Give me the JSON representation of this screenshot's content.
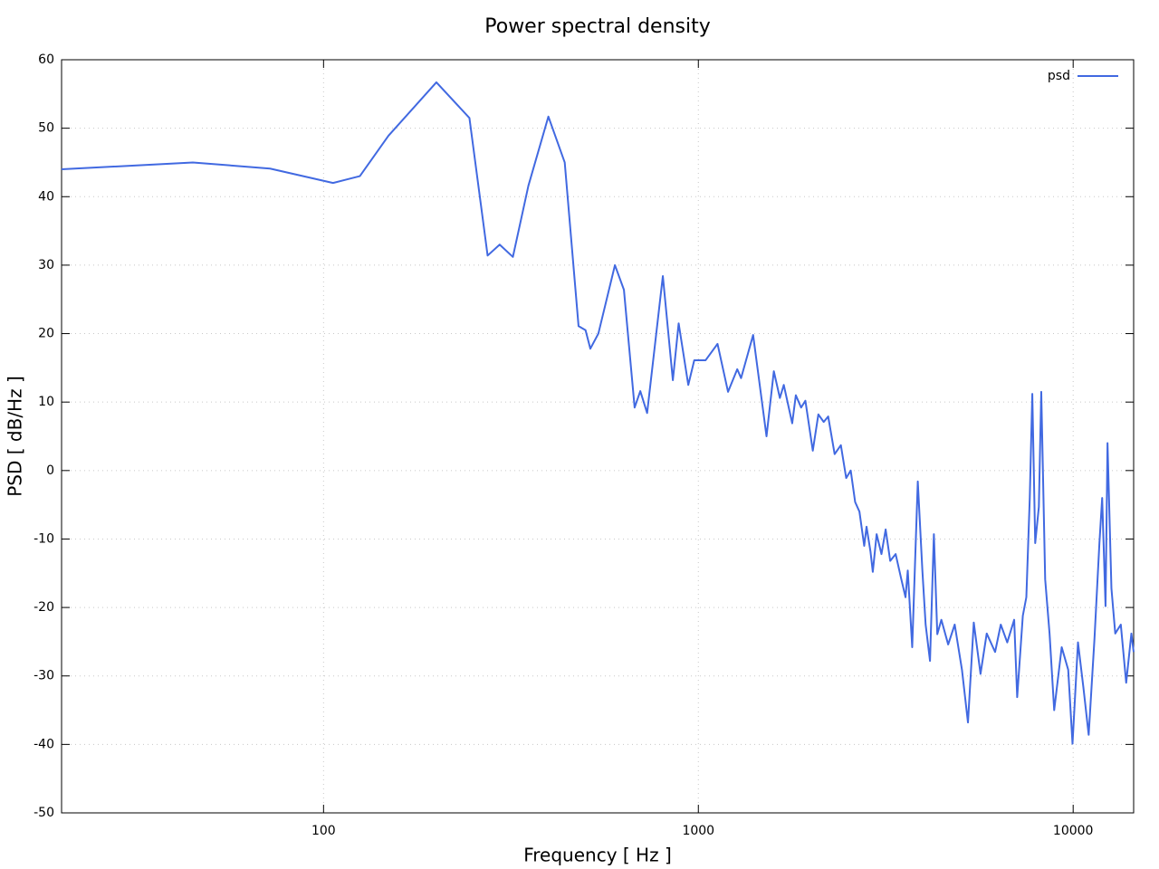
{
  "chart_data": {
    "type": "line",
    "title": "Power spectral density",
    "xlabel": "Frequency [ Hz ]",
    "ylabel": "PSD [ dB/Hz ]",
    "xscale": "log",
    "grid": true,
    "legend": "top-right",
    "xlim": [
      20,
      14500
    ],
    "ylim": [
      -50,
      60
    ],
    "xticks": [
      100,
      1000,
      10000
    ],
    "yticks": [
      -50,
      -40,
      -30,
      -20,
      -10,
      0,
      10,
      20,
      30,
      40,
      50,
      60
    ],
    "x": [
      20,
      44.8,
      72,
      106,
      125,
      149,
      200,
      245,
      274,
      295,
      320,
      352,
      398,
      440,
      479,
      500,
      515,
      541,
      599,
      633,
      676,
      700,
      730,
      804,
      855,
      886,
      940,
      975,
      1045,
      1125,
      1200,
      1270,
      1300,
      1400,
      1520,
      1590,
      1650,
      1690,
      1780,
      1820,
      1880,
      1930,
      2020,
      2090,
      2160,
      2220,
      2310,
      2400,
      2480,
      2550,
      2620,
      2690,
      2770,
      2810,
      2880,
      2920,
      2990,
      3080,
      3160,
      3250,
      3360,
      3480,
      3570,
      3620,
      3720,
      3850,
      3960,
      4040,
      4150,
      4250,
      4340,
      4450,
      4640,
      4830,
      5050,
      5240,
      5430,
      5660,
      5880,
      6190,
      6410,
      6670,
      6960,
      7090,
      7340,
      7500,
      7660,
      7780,
      7920,
      8100,
      8220,
      8420,
      8650,
      8900,
      9320,
      9700,
      9960,
      10300,
      10650,
      11000,
      11400,
      11750,
      11950,
      12200,
      12350,
      12650,
      12950,
      13400,
      13850,
      14300,
      14500
    ],
    "series": [
      {
        "name": "psd",
        "color": "#4169e1",
        "values": [
          44.0,
          45.0,
          44.1,
          42.0,
          43.0,
          48.9,
          56.7,
          51.5,
          31.4,
          33.0,
          31.2,
          41.6,
          51.7,
          45.0,
          21.1,
          20.5,
          17.8,
          20.0,
          30.0,
          26.4,
          9.2,
          11.6,
          8.4,
          28.4,
          13.2,
          21.5,
          12.5,
          16.1,
          16.1,
          18.5,
          11.5,
          14.8,
          13.5,
          19.8,
          5.0,
          14.5,
          10.6,
          12.5,
          6.9,
          11.0,
          9.2,
          10.2,
          2.9,
          8.2,
          7.1,
          7.9,
          2.4,
          3.7,
          -1.1,
          0,
          -4.6,
          -6.0,
          -11.0,
          -8.2,
          -11.9,
          -14.8,
          -9.3,
          -12.2,
          -8.6,
          -13.2,
          -12.2,
          -15.9,
          -18.5,
          -14.6,
          -25.8,
          -1.6,
          -14.6,
          -22.5,
          -27.8,
          -9.3,
          -23.9,
          -21.8,
          -25.4,
          -22.5,
          -29.1,
          -36.8,
          -22.2,
          -29.7,
          -23.8,
          -26.5,
          -22.5,
          -25.1,
          -21.8,
          -33.1,
          -21.2,
          -18.5,
          -4.0,
          11.2,
          -10.6,
          -5.3,
          11.5,
          -15.9,
          -23.8,
          -35.0,
          -25.8,
          -29.1,
          -39.9,
          -25.1,
          -31.7,
          -38.6,
          -24.5,
          -10.6,
          -4.0,
          -19.8,
          4.0,
          -17.2,
          -23.8,
          -22.5,
          -31.0,
          -23.8,
          -26.5
        ]
      }
    ]
  }
}
